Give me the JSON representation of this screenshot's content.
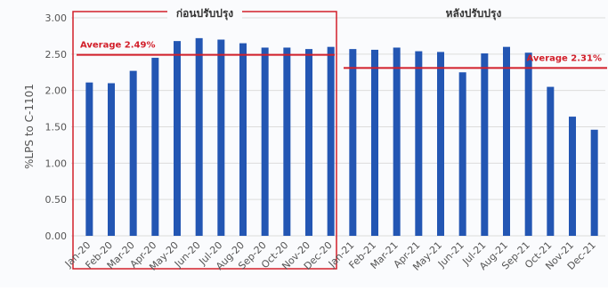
{
  "chart_data": {
    "type": "bar",
    "ylabel": "%LPS to C-1101",
    "ylim": [
      0,
      3.0
    ],
    "yticks": [
      "0.00",
      "0.50",
      "1.00",
      "1.50",
      "2.00",
      "2.50",
      "3.00"
    ],
    "grid": true,
    "categories": [
      "Jan-20",
      "Feb-20",
      "Mar-20",
      "Apr-20",
      "May-20",
      "Jun-20",
      "Jul-20",
      "Aug-20",
      "Sep-20",
      "Oct-20",
      "Nov-20",
      "Dec-20",
      "Jan-21",
      "Feb-21",
      "Mar-21",
      "Apr-21",
      "May-21",
      "Jun-21",
      "Jul-21",
      "Aug-21",
      "Sep-21",
      "Oct-21",
      "Nov-21",
      "Dec-21"
    ],
    "values": [
      2.11,
      2.1,
      2.27,
      2.45,
      2.68,
      2.72,
      2.7,
      2.65,
      2.59,
      2.59,
      2.57,
      2.6,
      2.57,
      2.56,
      2.59,
      2.54,
      2.53,
      2.25,
      2.51,
      2.6,
      2.52,
      2.05,
      1.64,
      1.46
    ],
    "bar_color": "#2356b3",
    "groups": [
      {
        "label": "ก่อนปรับปรุง",
        "average_label": "Average 2.49%",
        "average": 2.49,
        "from": 0,
        "to": 11
      },
      {
        "label": "หลังปรับปรุง",
        "average_label": "Average 2.31%",
        "average": 2.31,
        "from": 12,
        "to": 23
      }
    ],
    "annotation_color": "#d21f2a"
  }
}
